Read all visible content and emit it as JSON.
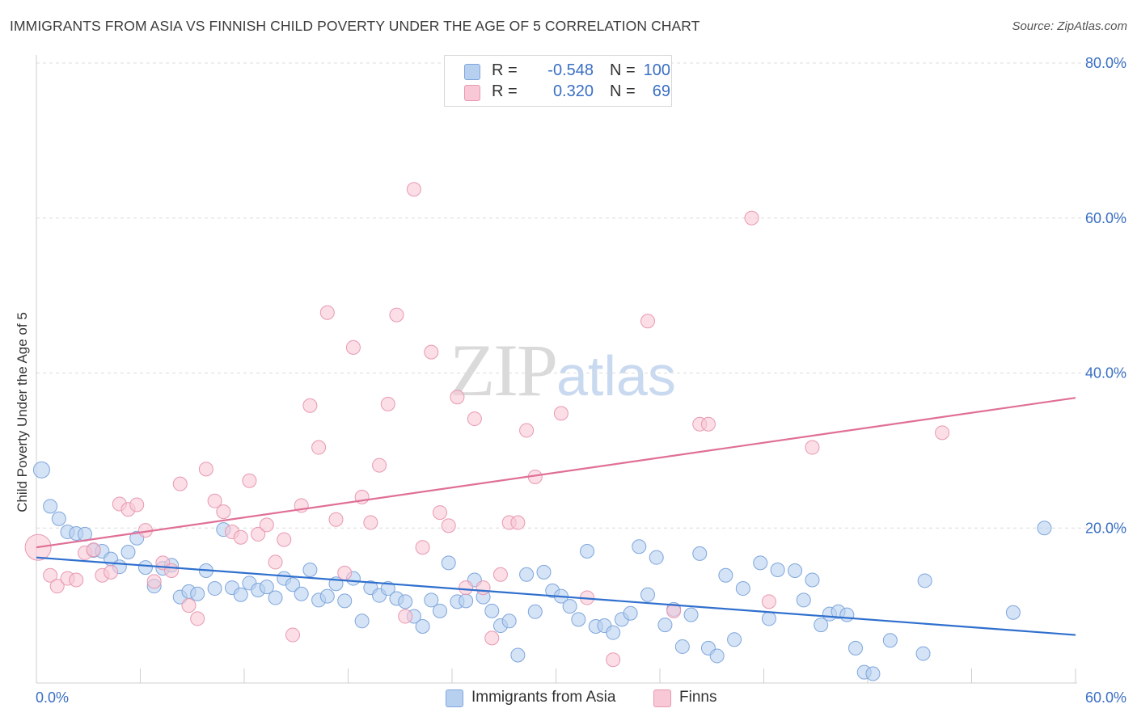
{
  "title": "IMMIGRANTS FROM ASIA VS FINNISH CHILD POVERTY UNDER THE AGE OF 5 CORRELATION CHART",
  "source": "Source: ZipAtlas.com",
  "watermark": {
    "zip": "ZIP",
    "atlas": "atlas"
  },
  "legend": {
    "rows": [
      {
        "r_label": "R =",
        "r_value": "-0.548",
        "n_label": "N =",
        "n_value": "100",
        "color": "#b8d0f0",
        "border": "#7fa6dc"
      },
      {
        "r_label": "R =",
        "r_value": "0.320",
        "n_label": "N =",
        "n_value": "69",
        "color": "#f8c8d6",
        "border": "#e899b1"
      }
    ]
  },
  "bottom_legend": [
    {
      "label": "Immigrants from Asia",
      "color": "#b8d0f0",
      "border": "#7fa6dc"
    },
    {
      "label": "Finns",
      "color": "#f8c8d6",
      "border": "#e899b1"
    }
  ],
  "chart_data": {
    "type": "scatter",
    "title": "IMMIGRANTS FROM ASIA VS FINNISH CHILD POVERTY UNDER THE AGE OF 5 CORRELATION CHART",
    "xlabel": "",
    "ylabel": "Child Poverty Under the Age of 5",
    "xlim": [
      0,
      60
    ],
    "ylim": [
      0,
      80
    ],
    "x_tick_labels": [
      "0.0%",
      "60.0%"
    ],
    "y_tick_labels": [
      "20.0%",
      "40.0%",
      "60.0%",
      "80.0%"
    ],
    "y_ticks": [
      20,
      40,
      60,
      80
    ],
    "grid": "horizontal dashed",
    "legend_position": "top-center",
    "series": [
      {
        "name": "Immigrants from Asia",
        "color": "#7fa6dc",
        "fill": "#b8d0f0",
        "trend": {
          "x": [
            0,
            60
          ],
          "y": [
            16.2,
            6.2
          ],
          "color": "#2f6fce"
        },
        "points": [
          [
            0.3,
            27.5
          ],
          [
            0.8,
            22.8
          ],
          [
            1.3,
            21.2
          ],
          [
            1.8,
            19.5
          ],
          [
            2.3,
            19.3
          ],
          [
            2.8,
            19.2
          ],
          [
            3.3,
            17.1
          ],
          [
            3.8,
            17.0
          ],
          [
            4.3,
            16.0
          ],
          [
            4.8,
            15.0
          ],
          [
            5.3,
            16.9
          ],
          [
            5.8,
            18.7
          ],
          [
            6.3,
            14.9
          ],
          [
            6.8,
            12.5
          ],
          [
            7.3,
            14.8
          ],
          [
            7.8,
            15.2
          ],
          [
            8.3,
            11.1
          ],
          [
            8.8,
            11.8
          ],
          [
            9.3,
            11.5
          ],
          [
            9.8,
            14.5
          ],
          [
            10.3,
            12.2
          ],
          [
            10.8,
            19.8
          ],
          [
            11.3,
            12.3
          ],
          [
            11.8,
            11.4
          ],
          [
            12.3,
            12.9
          ],
          [
            12.8,
            12.0
          ],
          [
            13.3,
            12.4
          ],
          [
            13.8,
            11.0
          ],
          [
            14.3,
            13.5
          ],
          [
            14.8,
            12.7
          ],
          [
            15.3,
            11.5
          ],
          [
            15.8,
            14.6
          ],
          [
            16.3,
            10.7
          ],
          [
            16.8,
            11.2
          ],
          [
            17.3,
            12.8
          ],
          [
            17.8,
            10.6
          ],
          [
            18.3,
            13.5
          ],
          [
            18.8,
            8.0
          ],
          [
            19.3,
            12.3
          ],
          [
            19.8,
            11.3
          ],
          [
            20.3,
            12.2
          ],
          [
            20.8,
            10.9
          ],
          [
            21.3,
            10.5
          ],
          [
            21.8,
            8.6
          ],
          [
            22.3,
            7.3
          ],
          [
            22.8,
            10.7
          ],
          [
            23.3,
            9.3
          ],
          [
            23.8,
            15.5
          ],
          [
            24.3,
            10.5
          ],
          [
            24.8,
            10.6
          ],
          [
            25.3,
            13.3
          ],
          [
            25.8,
            11.1
          ],
          [
            26.3,
            9.3
          ],
          [
            26.8,
            7.4
          ],
          [
            27.3,
            8.0
          ],
          [
            27.8,
            3.6
          ],
          [
            28.3,
            14.0
          ],
          [
            28.8,
            9.2
          ],
          [
            29.3,
            14.3
          ],
          [
            29.8,
            11.9
          ],
          [
            30.3,
            11.2
          ],
          [
            30.8,
            9.9
          ],
          [
            31.3,
            8.2
          ],
          [
            31.8,
            17.0
          ],
          [
            32.3,
            7.3
          ],
          [
            32.8,
            7.4
          ],
          [
            33.3,
            6.5
          ],
          [
            33.8,
            8.2
          ],
          [
            34.3,
            9.0
          ],
          [
            34.8,
            17.6
          ],
          [
            35.3,
            11.4
          ],
          [
            35.8,
            16.2
          ],
          [
            36.3,
            7.5
          ],
          [
            36.8,
            9.5
          ],
          [
            37.3,
            4.7
          ],
          [
            37.8,
            8.8
          ],
          [
            38.3,
            16.7
          ],
          [
            38.8,
            4.5
          ],
          [
            39.3,
            3.5
          ],
          [
            39.8,
            13.9
          ],
          [
            40.3,
            5.6
          ],
          [
            40.8,
            12.2
          ],
          [
            41.8,
            15.5
          ],
          [
            42.3,
            8.3
          ],
          [
            42.8,
            14.6
          ],
          [
            43.8,
            14.5
          ],
          [
            44.3,
            10.7
          ],
          [
            44.8,
            13.3
          ],
          [
            45.3,
            7.5
          ],
          [
            45.8,
            8.9
          ],
          [
            46.3,
            9.2
          ],
          [
            46.8,
            8.8
          ],
          [
            47.3,
            4.5
          ],
          [
            47.8,
            1.4
          ],
          [
            48.3,
            1.2
          ],
          [
            49.3,
            5.5
          ],
          [
            51.2,
            3.8
          ],
          [
            51.3,
            13.2
          ],
          [
            56.4,
            9.1
          ],
          [
            58.2,
            20.0
          ]
        ]
      },
      {
        "name": "Finns",
        "color": "#e899b1",
        "fill": "#f8c8d6",
        "trend": {
          "x": [
            0,
            60
          ],
          "y": [
            17.5,
            36.8
          ],
          "color": "#e06f96"
        },
        "points": [
          [
            0.1,
            17.5
          ],
          [
            0.8,
            13.9
          ],
          [
            1.2,
            12.5
          ],
          [
            1.8,
            13.5
          ],
          [
            2.3,
            13.3
          ],
          [
            2.8,
            16.8
          ],
          [
            3.3,
            17.2
          ],
          [
            3.8,
            13.9
          ],
          [
            4.3,
            14.3
          ],
          [
            4.8,
            23.1
          ],
          [
            5.3,
            22.4
          ],
          [
            5.8,
            23.0
          ],
          [
            6.3,
            19.7
          ],
          [
            6.8,
            13.1
          ],
          [
            7.3,
            15.5
          ],
          [
            7.8,
            14.5
          ],
          [
            8.3,
            25.7
          ],
          [
            8.8,
            10.0
          ],
          [
            9.3,
            8.3
          ],
          [
            9.8,
            27.6
          ],
          [
            10.3,
            23.5
          ],
          [
            10.8,
            22.1
          ],
          [
            11.3,
            19.5
          ],
          [
            11.8,
            18.8
          ],
          [
            12.3,
            26.1
          ],
          [
            12.8,
            19.2
          ],
          [
            13.3,
            20.4
          ],
          [
            13.8,
            15.6
          ],
          [
            14.3,
            18.5
          ],
          [
            14.8,
            6.2
          ],
          [
            15.3,
            22.9
          ],
          [
            15.8,
            35.8
          ],
          [
            16.3,
            30.4
          ],
          [
            16.8,
            47.8
          ],
          [
            17.3,
            21.1
          ],
          [
            17.8,
            14.2
          ],
          [
            18.3,
            43.3
          ],
          [
            18.8,
            24.0
          ],
          [
            19.3,
            20.7
          ],
          [
            19.8,
            28.1
          ],
          [
            20.3,
            36.0
          ],
          [
            20.8,
            47.5
          ],
          [
            21.3,
            8.6
          ],
          [
            21.8,
            63.7
          ],
          [
            22.3,
            17.5
          ],
          [
            22.8,
            42.7
          ],
          [
            23.3,
            22.0
          ],
          [
            23.8,
            20.3
          ],
          [
            24.3,
            36.9
          ],
          [
            24.8,
            12.3
          ],
          [
            25.3,
            34.1
          ],
          [
            25.8,
            12.3
          ],
          [
            26.3,
            5.8
          ],
          [
            26.8,
            14.0
          ],
          [
            27.3,
            20.7
          ],
          [
            27.8,
            20.7
          ],
          [
            28.3,
            32.6
          ],
          [
            28.8,
            26.6
          ],
          [
            30.3,
            34.8
          ],
          [
            31.8,
            11.0
          ],
          [
            33.3,
            3.0
          ],
          [
            35.3,
            46.7
          ],
          [
            36.8,
            9.3
          ],
          [
            38.3,
            33.4
          ],
          [
            38.8,
            33.4
          ],
          [
            41.3,
            60.0
          ],
          [
            42.3,
            10.5
          ],
          [
            44.8,
            30.4
          ],
          [
            52.3,
            32.3
          ]
        ]
      }
    ]
  }
}
